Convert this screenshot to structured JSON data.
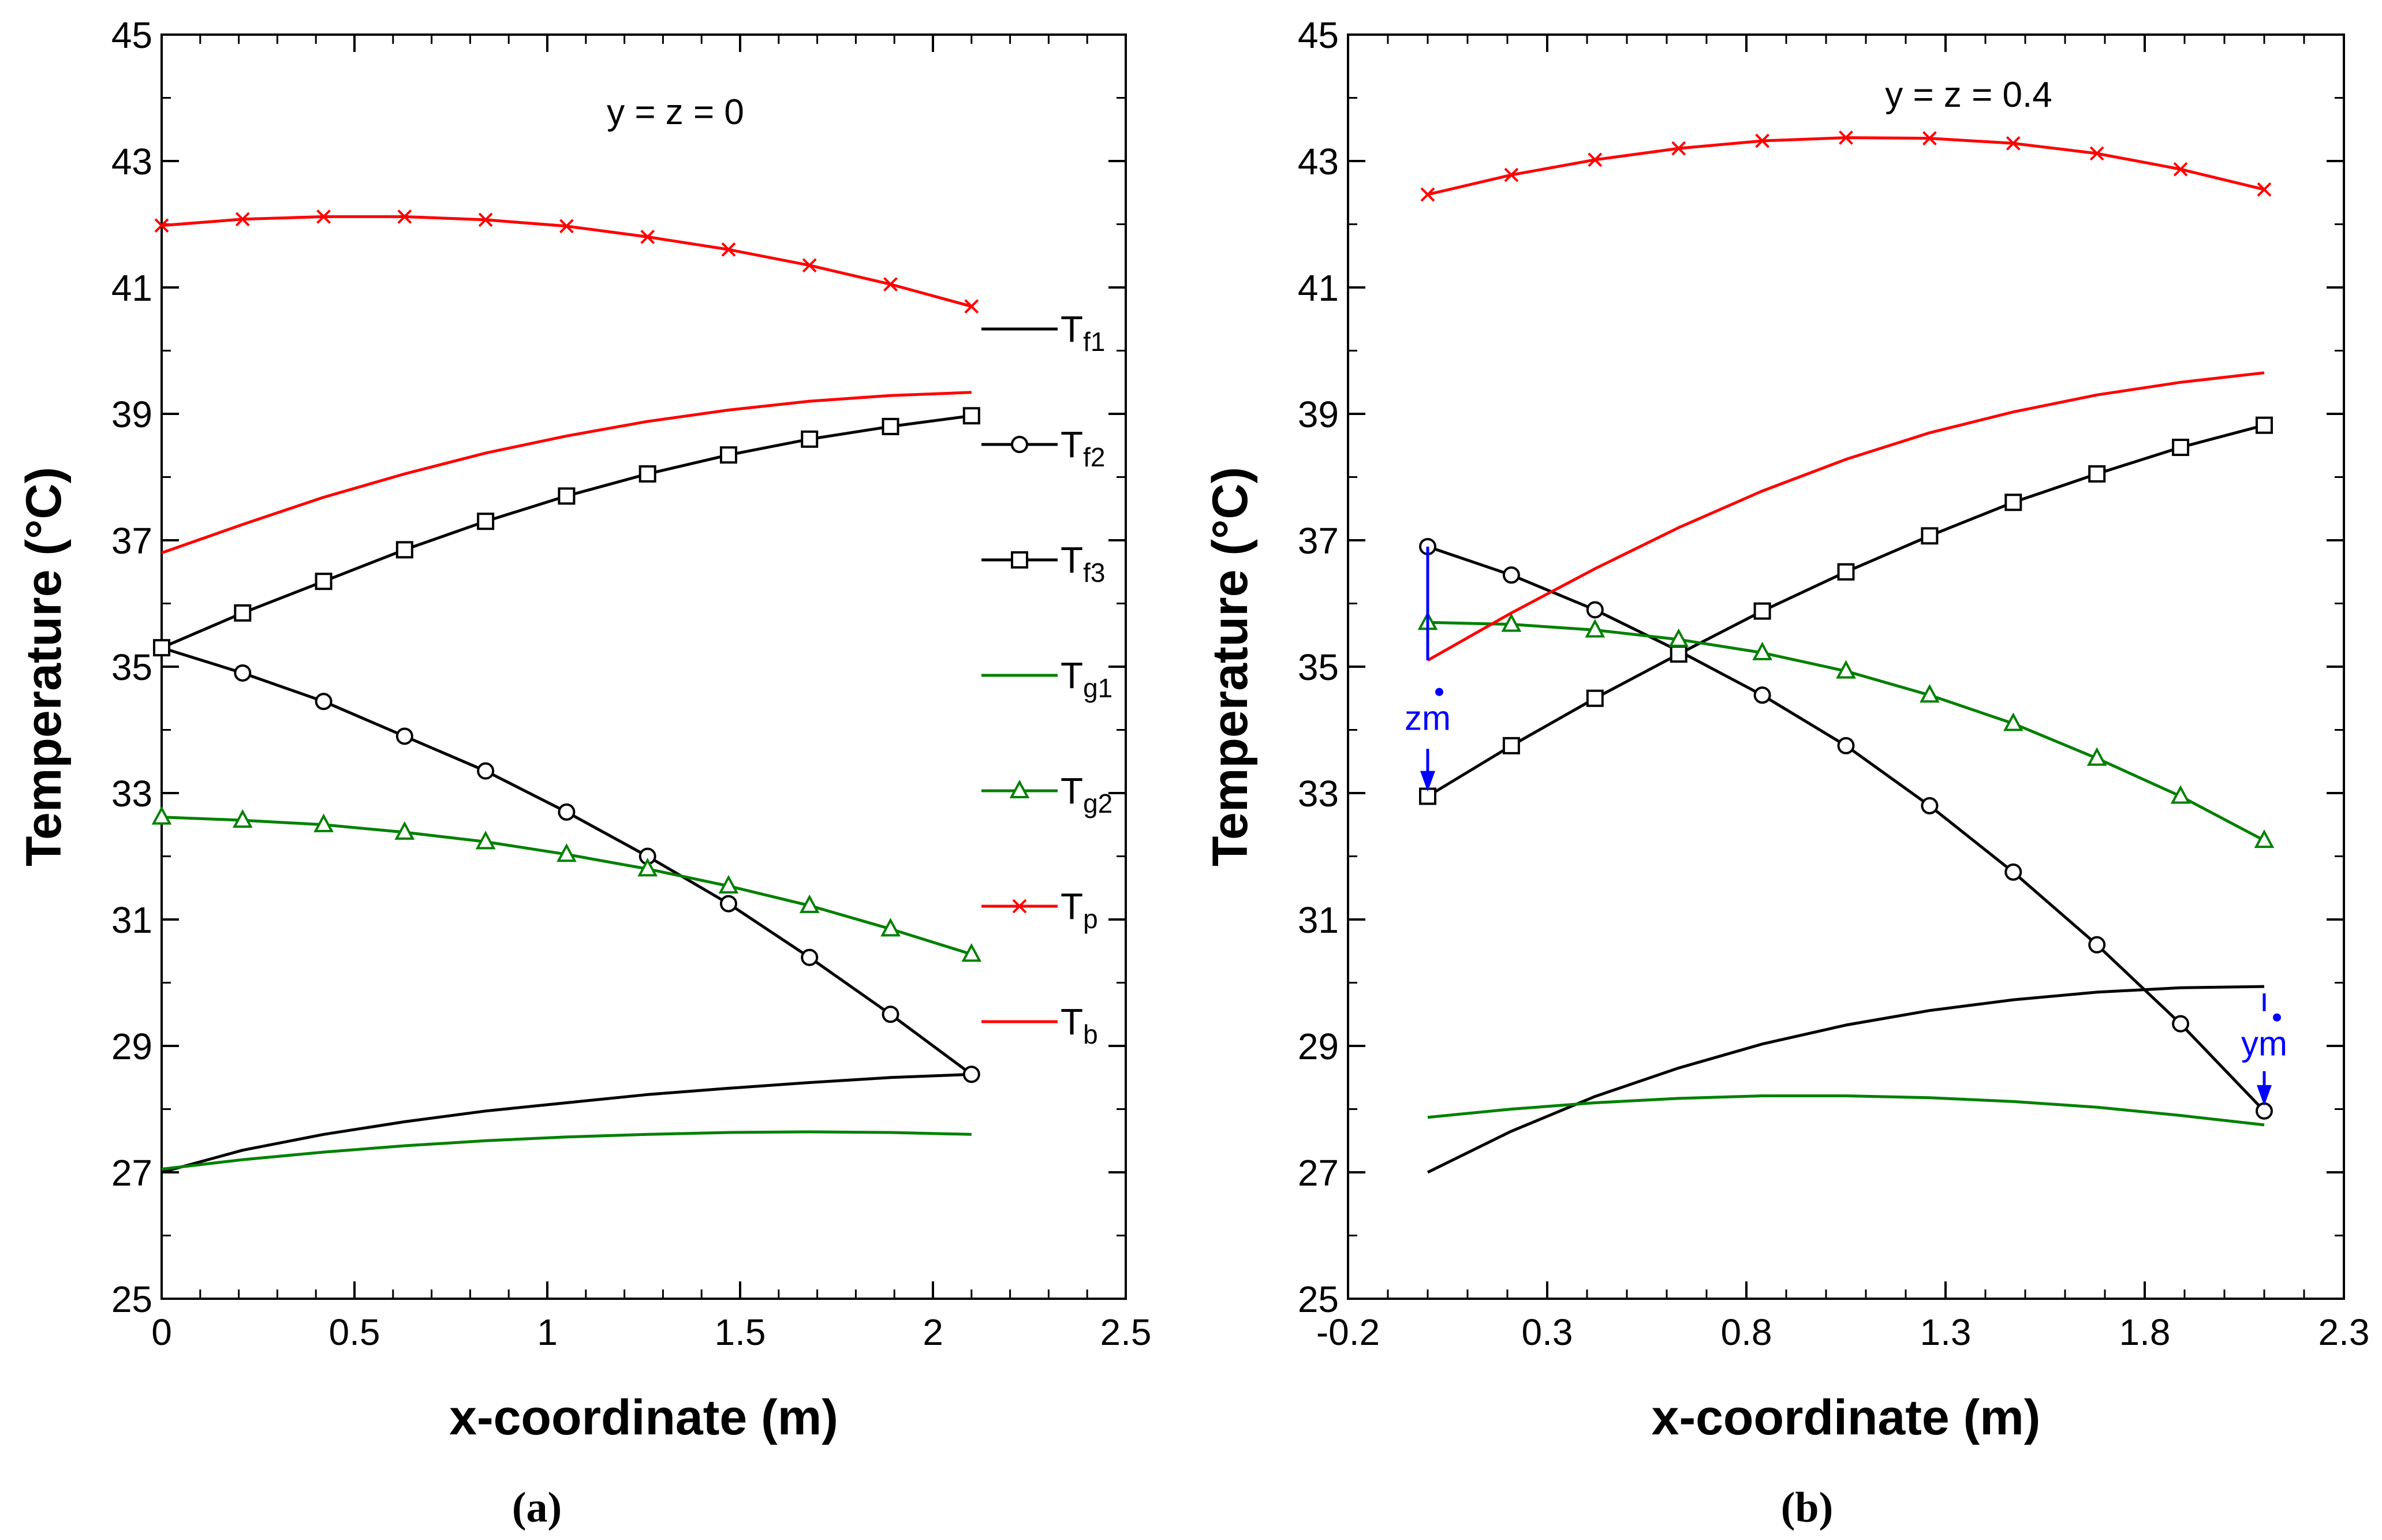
{
  "chart_data": [
    {
      "type": "line",
      "panel": "a",
      "caption": "(a)",
      "annotation": "y = z = 0",
      "xlabel": "x-coordinate (m)",
      "ylabel": "Temperature (°C)",
      "xlim": [
        0,
        2.5
      ],
      "ylim": [
        25,
        45
      ],
      "xticks": [
        0,
        0.5,
        1,
        1.5,
        2,
        2.5
      ],
      "xtick_labels": [
        "0",
        "0.5",
        "1",
        "1.5",
        "2",
        "2.5"
      ],
      "yticks": [
        25,
        27,
        29,
        31,
        33,
        35,
        37,
        39,
        41,
        43,
        45
      ],
      "ytick_labels": [
        "25",
        "27",
        "29",
        "31",
        "33",
        "35",
        "37",
        "39",
        "41",
        "43",
        "45"
      ],
      "legend": [
        {
          "base": "T",
          "sub": "f1",
          "series": "Tf1"
        },
        {
          "base": "T",
          "sub": "f2",
          "series": "Tf2"
        },
        {
          "base": "T",
          "sub": "f3",
          "series": "Tf3"
        },
        {
          "base": "T",
          "sub": "g1",
          "series": "Tg1"
        },
        {
          "base": "T",
          "sub": "g2",
          "series": "Tg2"
        },
        {
          "base": "T",
          "sub": "p",
          "series": "Tp"
        },
        {
          "base": "T",
          "sub": "b",
          "series": "Tb"
        }
      ],
      "series": [
        {
          "name": "Tf1",
          "color": "#000000",
          "marker": "none",
          "x": [
            0,
            0.21,
            0.42,
            0.63,
            0.84,
            1.05,
            1.26,
            1.47,
            1.68,
            1.89,
            2.1
          ],
          "y": [
            27.0,
            27.35,
            27.6,
            27.8,
            27.97,
            28.1,
            28.23,
            28.33,
            28.42,
            28.5,
            28.55
          ]
        },
        {
          "name": "Tf2",
          "color": "#000000",
          "marker": "circle",
          "x": [
            0,
            0.21,
            0.42,
            0.63,
            0.84,
            1.05,
            1.26,
            1.47,
            1.68,
            1.89,
            2.1
          ],
          "y": [
            35.3,
            34.9,
            34.45,
            33.9,
            33.35,
            32.7,
            32.0,
            31.25,
            30.4,
            29.5,
            28.55
          ]
        },
        {
          "name": "Tf3",
          "color": "#000000",
          "marker": "square",
          "x": [
            0,
            0.21,
            0.42,
            0.63,
            0.84,
            1.05,
            1.26,
            1.47,
            1.68,
            1.89,
            2.1
          ],
          "y": [
            35.3,
            35.85,
            36.35,
            36.85,
            37.3,
            37.7,
            38.05,
            38.35,
            38.6,
            38.8,
            38.97
          ]
        },
        {
          "name": "Tg1",
          "color": "#008000",
          "marker": "none",
          "x": [
            0,
            0.21,
            0.42,
            0.63,
            0.84,
            1.05,
            1.26,
            1.47,
            1.68,
            1.89,
            2.1
          ],
          "y": [
            27.05,
            27.2,
            27.32,
            27.42,
            27.5,
            27.56,
            27.6,
            27.63,
            27.64,
            27.63,
            27.6
          ]
        },
        {
          "name": "Tg2",
          "color": "#008000",
          "marker": "triangle",
          "x": [
            0,
            0.21,
            0.42,
            0.63,
            0.84,
            1.05,
            1.26,
            1.47,
            1.68,
            1.89,
            2.1
          ],
          "y": [
            32.62,
            32.57,
            32.5,
            32.38,
            32.23,
            32.03,
            31.8,
            31.53,
            31.22,
            30.85,
            30.45
          ]
        },
        {
          "name": "Tp",
          "color": "#ff0000",
          "marker": "cross",
          "x": [
            0,
            0.21,
            0.42,
            0.63,
            0.84,
            1.05,
            1.26,
            1.47,
            1.68,
            1.89,
            2.1
          ],
          "y": [
            41.98,
            42.08,
            42.12,
            42.12,
            42.07,
            41.97,
            41.8,
            41.6,
            41.35,
            41.05,
            40.7
          ]
        },
        {
          "name": "Tb",
          "color": "#ff0000",
          "marker": "none",
          "x": [
            0,
            0.21,
            0.42,
            0.63,
            0.84,
            1.05,
            1.26,
            1.47,
            1.68,
            1.89,
            2.1
          ],
          "y": [
            36.8,
            37.25,
            37.68,
            38.05,
            38.38,
            38.65,
            38.88,
            39.06,
            39.2,
            39.29,
            39.34
          ]
        }
      ]
    },
    {
      "type": "line",
      "panel": "b",
      "caption": "(b)",
      "annotation": "y = z = 0.4",
      "xlabel": "x-coordinate (m)",
      "ylabel": "Temperature (°C)",
      "xlim": [
        -0.2,
        2.3
      ],
      "ylim": [
        25,
        45
      ],
      "xticks": [
        -0.2,
        0.3,
        0.8,
        1.3,
        1.8,
        2.3
      ],
      "xtick_labels": [
        "-0.2",
        "0.3",
        "0.8",
        "1.3",
        "1.8",
        "2.3"
      ],
      "yticks": [
        25,
        27,
        29,
        31,
        33,
        35,
        37,
        39,
        41,
        43,
        45
      ],
      "ytick_labels": [
        "25",
        "27",
        "29",
        "31",
        "33",
        "35",
        "37",
        "39",
        "41",
        "43",
        "45"
      ],
      "markers_annot": [
        {
          "label": "zm",
          "color": "#0000ff"
        },
        {
          "label": "ym",
          "color": "#0000ff"
        }
      ],
      "series": [
        {
          "name": "Tf1",
          "color": "#000000",
          "marker": "none",
          "x": [
            0,
            0.21,
            0.42,
            0.63,
            0.84,
            1.05,
            1.26,
            1.47,
            1.68,
            1.89,
            2.1
          ],
          "y": [
            27.0,
            27.65,
            28.2,
            28.65,
            29.03,
            29.33,
            29.56,
            29.73,
            29.85,
            29.92,
            29.94
          ]
        },
        {
          "name": "Tf2",
          "color": "#000000",
          "marker": "circle",
          "x": [
            0,
            0.21,
            0.42,
            0.63,
            0.84,
            1.05,
            1.26,
            1.47,
            1.68,
            1.89,
            2.1
          ],
          "y": [
            36.9,
            36.45,
            35.9,
            35.25,
            34.55,
            33.75,
            32.8,
            31.75,
            30.6,
            29.35,
            27.97
          ]
        },
        {
          "name": "Tf3",
          "color": "#000000",
          "marker": "square",
          "x": [
            0,
            0.21,
            0.42,
            0.63,
            0.84,
            1.05,
            1.26,
            1.47,
            1.68,
            1.89,
            2.1
          ],
          "y": [
            32.95,
            33.75,
            34.5,
            35.2,
            35.88,
            36.5,
            37.07,
            37.6,
            38.05,
            38.47,
            38.82
          ]
        },
        {
          "name": "Tg1",
          "color": "#008000",
          "marker": "none",
          "x": [
            0,
            0.21,
            0.42,
            0.63,
            0.84,
            1.05,
            1.26,
            1.47,
            1.68,
            1.89,
            2.1
          ],
          "y": [
            27.87,
            28.0,
            28.1,
            28.17,
            28.21,
            28.21,
            28.18,
            28.12,
            28.03,
            27.9,
            27.75
          ]
        },
        {
          "name": "Tg2",
          "color": "#008000",
          "marker": "triangle",
          "x": [
            0,
            0.21,
            0.42,
            0.63,
            0.84,
            1.05,
            1.26,
            1.47,
            1.68,
            1.89,
            2.1
          ],
          "y": [
            35.7,
            35.67,
            35.58,
            35.43,
            35.22,
            34.93,
            34.55,
            34.1,
            33.55,
            32.95,
            32.25
          ]
        },
        {
          "name": "Tp",
          "color": "#ff0000",
          "marker": "cross",
          "x": [
            0,
            0.21,
            0.42,
            0.63,
            0.84,
            1.05,
            1.26,
            1.47,
            1.68,
            1.89,
            2.1
          ],
          "y": [
            42.47,
            42.78,
            43.02,
            43.2,
            43.32,
            43.37,
            43.36,
            43.28,
            43.12,
            42.87,
            42.55
          ]
        },
        {
          "name": "Tb",
          "color": "#ff0000",
          "marker": "none",
          "x": [
            0,
            0.21,
            0.42,
            0.63,
            0.84,
            1.05,
            1.26,
            1.47,
            1.68,
            1.89,
            2.1
          ],
          "y": [
            35.1,
            35.85,
            36.55,
            37.2,
            37.78,
            38.28,
            38.7,
            39.03,
            39.3,
            39.5,
            39.65
          ]
        }
      ]
    }
  ]
}
